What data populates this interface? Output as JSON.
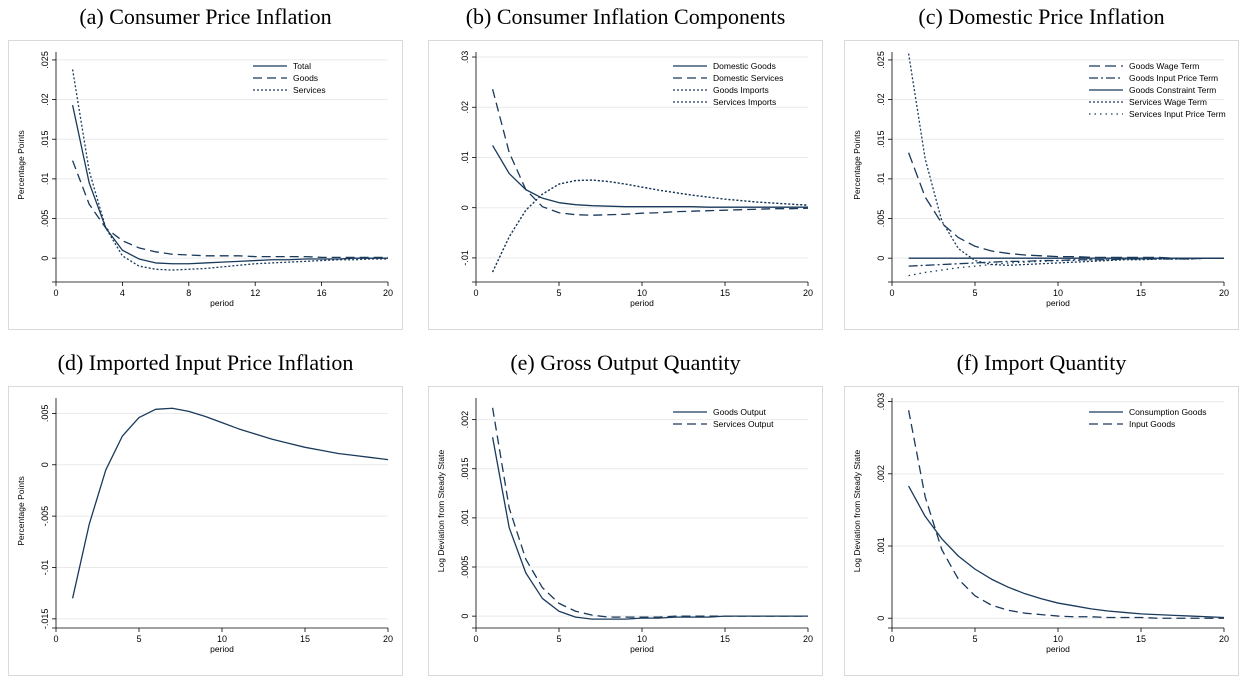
{
  "charts": [
    {
      "id": "a",
      "title": "(a) Consumer Price Inflation",
      "ylabel": "Percentage Points",
      "xlabel": "period",
      "ylim": [
        -0.0025,
        0.026
      ],
      "y_ticks": [
        0,
        0.005,
        0.01,
        0.015,
        0.02,
        0.025
      ],
      "y_tick_labels": [
        "0",
        ".005",
        ".01",
        ".015",
        ".02",
        ".025"
      ],
      "x_ticks": [
        0,
        4,
        8,
        12,
        16,
        20
      ],
      "legend": {
        "position": "top-right"
      },
      "series": [
        {
          "name": "Total",
          "style": "solid",
          "values": [
            0.0193,
            0.0095,
            0.0038,
            0.001,
            -0.0001,
            -0.0006,
            -0.0007,
            -0.0007,
            -0.0006,
            -0.0005,
            -0.0004,
            -0.0003,
            -0.0002,
            -0.0002,
            -0.0001,
            -0.0001,
            -0.0001,
            0.0,
            0.0,
            0.0
          ]
        },
        {
          "name": "Goods",
          "style": "dash",
          "values": [
            0.0123,
            0.0068,
            0.0038,
            0.0022,
            0.0013,
            0.0008,
            0.0005,
            0.0004,
            0.0003,
            0.0003,
            0.0003,
            0.0002,
            0.0002,
            0.0002,
            0.0002,
            0.0001,
            0.0001,
            0.0001,
            0.0001,
            0.0001
          ]
        },
        {
          "name": "Services",
          "style": "dot",
          "values": [
            0.0238,
            0.011,
            0.0038,
            0.0003,
            -0.001,
            -0.0014,
            -0.0015,
            -0.0014,
            -0.0013,
            -0.0011,
            -0.0009,
            -0.0007,
            -0.0006,
            -0.0005,
            -0.0004,
            -0.0003,
            -0.0002,
            -0.0002,
            -0.0001,
            -0.0001
          ]
        }
      ]
    },
    {
      "id": "b",
      "title": "(b) Consumer Inflation Components",
      "ylabel": "",
      "xlabel": "period",
      "ylim": [
        -0.014,
        0.031
      ],
      "y_ticks": [
        -0.01,
        0,
        0.01,
        0.02,
        0.03
      ],
      "y_tick_labels": [
        "-.01",
        "0",
        ".01",
        ".02",
        ".03"
      ],
      "x_ticks": [
        0,
        5,
        10,
        15,
        20
      ],
      "legend": {
        "position": "top-right"
      },
      "series": [
        {
          "name": "Domestic Goods",
          "style": "solid",
          "values": [
            0.0124,
            0.0068,
            0.0036,
            0.0019,
            0.001,
            0.0006,
            0.0004,
            0.0003,
            0.0002,
            0.0002,
            0.0002,
            0.0002,
            0.0002,
            0.0001,
            0.0001,
            0.0001,
            0.0001,
            0.0001,
            0.0001,
            0.0001
          ]
        },
        {
          "name": "Domestic Services",
          "style": "dash",
          "values": [
            0.0236,
            0.011,
            0.0036,
            0.0002,
            -0.001,
            -0.0014,
            -0.0015,
            -0.0014,
            -0.0013,
            -0.0011,
            -0.001,
            -0.0008,
            -0.0007,
            -0.0006,
            -0.0005,
            -0.0004,
            -0.0003,
            -0.0002,
            -0.0002,
            -0.0001
          ]
        },
        {
          "name": "Goods Imports",
          "style": "dot",
          "values": [
            -0.0128,
            -0.0058,
            -0.0005,
            0.0027,
            0.0047,
            0.0054,
            0.0055,
            0.0052,
            0.0047,
            0.0041,
            0.0035,
            0.003,
            0.0025,
            0.0021,
            0.0017,
            0.0014,
            0.0011,
            0.0009,
            0.0007,
            0.0005
          ]
        },
        {
          "name": "Services Imports",
          "style": "dot",
          "values": [
            -0.0128,
            -0.0058,
            -0.0005,
            0.0027,
            0.0047,
            0.0054,
            0.0055,
            0.0052,
            0.0047,
            0.0041,
            0.0035,
            0.003,
            0.0025,
            0.0021,
            0.0017,
            0.0014,
            0.0011,
            0.0009,
            0.0007,
            0.0005
          ]
        }
      ]
    },
    {
      "id": "c",
      "title": "(c) Domestic Price Inflation",
      "ylabel": "Percentage Points",
      "xlabel": "period",
      "ylim": [
        -0.0025,
        0.026
      ],
      "y_ticks": [
        0,
        0.005,
        0.01,
        0.015,
        0.02,
        0.025
      ],
      "y_tick_labels": [
        "0",
        ".005",
        ".01",
        ".015",
        ".02",
        ".025"
      ],
      "x_ticks": [
        0,
        5,
        10,
        15,
        20
      ],
      "legend": {
        "position": "top-right"
      },
      "series": [
        {
          "name": "Goods Wage Term",
          "style": "longdash",
          "values": [
            0.0133,
            0.0077,
            0.0044,
            0.0026,
            0.0015,
            0.0009,
            0.0006,
            0.0004,
            0.0003,
            0.0002,
            0.0002,
            0.0001,
            0.0001,
            0.0001,
            0.0001,
            0.0001,
            0.0,
            0.0,
            0.0,
            0.0
          ]
        },
        {
          "name": "Goods Input Price Term",
          "style": "dashdot",
          "values": [
            -0.001,
            -0.0009,
            -0.0008,
            -0.0007,
            -0.0006,
            -0.0005,
            -0.0004,
            -0.0004,
            -0.0003,
            -0.0003,
            -0.0002,
            -0.0002,
            -0.0002,
            -0.0001,
            -0.0001,
            -0.0001,
            -0.0001,
            -0.0001,
            0.0,
            0.0
          ]
        },
        {
          "name": "Goods Constraint Term",
          "style": "solid",
          "values": [
            0.0,
            0.0,
            0.0,
            0.0,
            0.0,
            0.0,
            0.0,
            0.0,
            0.0,
            0.0,
            0.0,
            0.0,
            0.0,
            0.0,
            0.0,
            0.0,
            0.0,
            0.0,
            0.0,
            0.0
          ]
        },
        {
          "name": "Services Wage Term",
          "style": "dot",
          "values": [
            0.0258,
            0.0125,
            0.0047,
            0.0012,
            -0.0003,
            -0.0008,
            -0.0009,
            -0.0008,
            -0.0007,
            -0.0006,
            -0.0005,
            -0.0004,
            -0.0003,
            -0.0002,
            -0.0002,
            -0.0001,
            -0.0001,
            -0.0001,
            0.0,
            0.0
          ]
        },
        {
          "name": "Services Input Price Term",
          "style": "sparsedot",
          "values": [
            -0.0022,
            -0.0018,
            -0.0015,
            -0.0012,
            -0.001,
            -0.0008,
            -0.0006,
            -0.0005,
            -0.0004,
            -0.0003,
            -0.0003,
            -0.0002,
            -0.0002,
            -0.0001,
            -0.0001,
            -0.0001,
            -0.0001,
            0.0,
            0.0,
            0.0
          ]
        }
      ]
    },
    {
      "id": "d",
      "title": "(d) Imported Input Price Inflation",
      "ylabel": "Percentage Points",
      "xlabel": "period",
      "ylim": [
        -0.0155,
        0.0065
      ],
      "y_ticks": [
        -0.015,
        -0.01,
        -0.005,
        0,
        0.005
      ],
      "y_tick_labels": [
        "-.015",
        "-.01",
        "-.005",
        "0",
        ".005"
      ],
      "x_ticks": [
        0,
        5,
        10,
        15,
        20
      ],
      "legend": null,
      "series": [
        {
          "name": "",
          "style": "solid",
          "values": [
            -0.013,
            -0.0058,
            -0.0005,
            0.0028,
            0.0046,
            0.0054,
            0.0055,
            0.0052,
            0.0047,
            0.0041,
            0.0035,
            0.003,
            0.0025,
            0.0021,
            0.0017,
            0.0014,
            0.0011,
            0.0009,
            0.0007,
            0.0005
          ]
        }
      ]
    },
    {
      "id": "e",
      "title": "(e) Gross Output Quantity",
      "ylabel": "Log Deviation from Steady State",
      "xlabel": "period",
      "ylim": [
        -8e-05,
        0.00222
      ],
      "y_ticks": [
        0,
        0.0005,
        0.001,
        0.0015,
        0.002
      ],
      "y_tick_labels": [
        "0",
        ".0005",
        ".001",
        ".0015",
        ".002"
      ],
      "x_ticks": [
        0,
        5,
        10,
        15,
        20
      ],
      "legend": {
        "position": "top-right"
      },
      "series": [
        {
          "name": "Goods Output",
          "style": "solid",
          "values": [
            0.00182,
            0.0009,
            0.00044,
            0.00018,
            5e-05,
            -1e-05,
            -3e-05,
            -3e-05,
            -3e-05,
            -2e-05,
            -2e-05,
            -1e-05,
            -1e-05,
            -1e-05,
            0.0,
            0.0,
            0.0,
            0.0,
            0.0,
            0.0
          ]
        },
        {
          "name": "Services Output",
          "style": "dash",
          "values": [
            0.00212,
            0.0011,
            0.00058,
            0.00029,
            0.00013,
            5e-05,
            1e-05,
            -1e-05,
            -1e-05,
            -1e-05,
            -1e-05,
            0.0,
            0.0,
            0.0,
            0.0,
            0.0,
            0.0,
            0.0,
            0.0,
            0.0
          ]
        }
      ]
    },
    {
      "id": "f",
      "title": "(f) Import Quantity",
      "ylabel": "Log Deviation from Steady State",
      "xlabel": "period",
      "ylim": [
        -8e-05,
        0.00305
      ],
      "y_ticks": [
        0,
        0.001,
        0.002,
        0.003
      ],
      "y_tick_labels": [
        "0",
        ".001",
        ".002",
        ".003"
      ],
      "x_ticks": [
        0,
        5,
        10,
        15,
        20
      ],
      "legend": {
        "position": "top-right"
      },
      "series": [
        {
          "name": "Consumption Goods",
          "style": "solid",
          "values": [
            0.00183,
            0.00141,
            0.0011,
            0.00086,
            0.00068,
            0.00054,
            0.00043,
            0.00034,
            0.00027,
            0.00021,
            0.00017,
            0.00013,
            0.0001,
            8e-05,
            6e-05,
            5e-05,
            4e-05,
            3e-05,
            2e-05,
            1e-05
          ]
        },
        {
          "name": "Input Goods",
          "style": "dash",
          "values": [
            0.00288,
            0.00168,
            0.00095,
            0.00054,
            0.00031,
            0.00018,
            0.00011,
            7e-05,
            5e-05,
            3e-05,
            2e-05,
            2e-05,
            1e-05,
            1e-05,
            1e-05,
            0.0,
            0.0,
            0.0,
            0.0,
            0.0
          ]
        }
      ]
    }
  ]
}
